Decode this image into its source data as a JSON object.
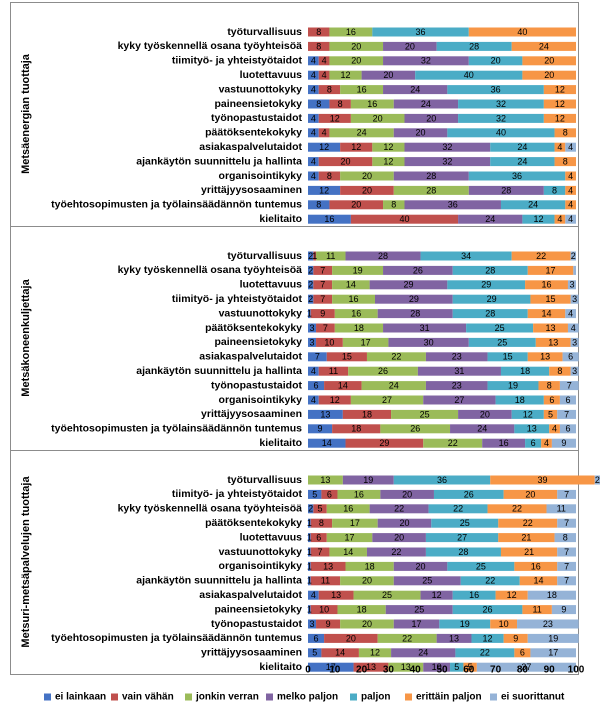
{
  "chart_data": {
    "type": "bar",
    "orientation": "horizontal",
    "stacked": true,
    "xlim": [
      0,
      100
    ],
    "xticks": [
      "0",
      "10",
      "20",
      "30",
      "40",
      "50",
      "60",
      "70",
      "80",
      "90",
      "100"
    ],
    "legend_position": "bottom",
    "series": [
      {
        "name": "ei lainkaan",
        "color": "#4472c4"
      },
      {
        "name": "vain vähän",
        "color": "#c0504d"
      },
      {
        "name": "jonkin verran",
        "color": "#9bbb59"
      },
      {
        "name": "melko paljon",
        "color": "#8064a2"
      },
      {
        "name": "paljon",
        "color": "#4bacc6"
      },
      {
        "name": "erittäin paljon",
        "color": "#f79646"
      },
      {
        "name": "ei suorittanut",
        "color": "#95b3d7"
      }
    ],
    "groups": [
      {
        "name": "Metsäenergian tuottaja",
        "rows": [
          {
            "label": "työturvallisuus",
            "values": [
              0,
              8,
              16,
              0,
              36,
              40,
              0
            ],
            "labels": [
              "",
              "8",
              "16",
              "",
              "36",
              "40",
              ""
            ]
          },
          {
            "label": "kyky työskennellä osana työyhteisöä",
            "values": [
              0,
              8,
              20,
              20,
              28,
              24,
              0
            ],
            "labels": [
              "",
              "8",
              "20",
              "20",
              "28",
              "24",
              ""
            ]
          },
          {
            "label": "tiimityö- ja yhteistyötaidot",
            "values": [
              4,
              4,
              20,
              32,
              20,
              20,
              0
            ],
            "labels": [
              "4",
              "4",
              "20",
              "32",
              "20",
              "20",
              ""
            ]
          },
          {
            "label": "luotettavuus",
            "values": [
              4,
              4,
              12,
              20,
              40,
              20,
              0
            ],
            "labels": [
              "4",
              "4",
              "12",
              "20",
              "40",
              "20",
              ""
            ]
          },
          {
            "label": "vastuunottokyky",
            "values": [
              4,
              8,
              16,
              24,
              36,
              12,
              0
            ],
            "labels": [
              "4",
              "8",
              "16",
              "24",
              "36",
              "12",
              ""
            ]
          },
          {
            "label": "paineensietokyky",
            "values": [
              8,
              8,
              16,
              24,
              32,
              12,
              0
            ],
            "labels": [
              "8",
              "8",
              "16",
              "24",
              "32",
              "12",
              ""
            ]
          },
          {
            "label": "työnopastustaidot",
            "values": [
              4,
              12,
              20,
              20,
              32,
              12,
              0
            ],
            "labels": [
              "4",
              "12",
              "20",
              "20",
              "32",
              "12",
              ""
            ]
          },
          {
            "label": "päätöksentekokyky",
            "values": [
              4,
              4,
              24,
              20,
              40,
              8,
              0
            ],
            "labels": [
              "4",
              "4",
              "24",
              "20",
              "40",
              "8",
              ""
            ]
          },
          {
            "label": "asiakaspalvelutaidot",
            "values": [
              12,
              12,
              12,
              32,
              24,
              4,
              4
            ],
            "labels": [
              "12",
              "12",
              "12",
              "32",
              "24",
              "4",
              "4"
            ]
          },
          {
            "label": "ajankäytön suunnittelu ja hallinta",
            "values": [
              4,
              20,
              12,
              32,
              24,
              8,
              0
            ],
            "labels": [
              "4",
              "20",
              "12",
              "32",
              "24",
              "8",
              ""
            ]
          },
          {
            "label": "organisointikyky",
            "values": [
              4,
              8,
              20,
              28,
              36,
              4,
              0
            ],
            "labels": [
              "4",
              "8",
              "20",
              "28",
              "36",
              "4",
              ""
            ]
          },
          {
            "label": "yrittäjyysosaaminen",
            "values": [
              12,
              20,
              28,
              28,
              8,
              4,
              0
            ],
            "labels": [
              "12",
              "20",
              "28",
              "28",
              "8",
              "4",
              ""
            ]
          },
          {
            "label": "työehtosopimusten ja työlainsäädännön tuntemus",
            "values": [
              8,
              20,
              8,
              36,
              24,
              4,
              0
            ],
            "labels": [
              "8",
              "20",
              "8",
              "36",
              "24",
              "4",
              ""
            ]
          },
          {
            "label": "kielitaito",
            "values": [
              16,
              40,
              0,
              24,
              12,
              4,
              4
            ],
            "labels": [
              "16",
              "40",
              "",
              "24",
              "12",
              "4",
              "4"
            ]
          }
        ]
      },
      {
        "name": "Metsäkoneenkuljettaja",
        "rows": [
          {
            "label": "työturvallisuus",
            "values": [
              2,
              1,
              11,
              28,
              34,
              22,
              2
            ],
            "labels": [
              "2",
              "1",
              "11",
              "28",
              "34",
              "22",
              "2"
            ]
          },
          {
            "label": "kyky työskennellä osana työyhteisöä",
            "values": [
              2,
              7,
              19,
              26,
              28,
              17,
              1
            ],
            "labels": [
              "2",
              "7",
              "19",
              "26",
              "28",
              "17",
              ""
            ]
          },
          {
            "label": "luotettavuus",
            "values": [
              2,
              7,
              14,
              29,
              29,
              16,
              3
            ],
            "labels": [
              "2",
              "7",
              "14",
              "29",
              "29",
              "16",
              "3"
            ]
          },
          {
            "label": "tiimityö- ja yhteistyötaidot",
            "values": [
              2,
              7,
              16,
              29,
              29,
              15,
              3
            ],
            "labels": [
              "2",
              "7",
              "16",
              "29",
              "29",
              "15",
              "3"
            ]
          },
          {
            "label": "vastuunottokyky",
            "values": [
              1,
              9,
              16,
              28,
              28,
              14,
              4
            ],
            "labels": [
              "1",
              "9",
              "16",
              "28",
              "28",
              "14",
              "4"
            ]
          },
          {
            "label": "päätöksentekokyky",
            "values": [
              3,
              7,
              18,
              31,
              25,
              13,
              4
            ],
            "labels": [
              "3",
              "7",
              "18",
              "31",
              "25",
              "13",
              "4"
            ]
          },
          {
            "label": "paineensietokyky",
            "values": [
              3,
              10,
              17,
              30,
              25,
              13,
              3
            ],
            "labels": [
              "3",
              "10",
              "17",
              "30",
              "25",
              "13",
              "3"
            ]
          },
          {
            "label": "asiakaspalvelutaidot",
            "values": [
              7,
              15,
              22,
              23,
              15,
              13,
              6
            ],
            "labels": [
              "7",
              "15",
              "22",
              "23",
              "15",
              "13",
              "6"
            ]
          },
          {
            "label": "ajankäytön suunnittelu ja hallinta",
            "values": [
              4,
              11,
              26,
              31,
              18,
              8,
              3
            ],
            "labels": [
              "4",
              "11",
              "26",
              "31",
              "18",
              "8",
              "3"
            ]
          },
          {
            "label": "työnopastustaidot",
            "values": [
              6,
              14,
              24,
              23,
              19,
              8,
              7
            ],
            "labels": [
              "6",
              "14",
              "24",
              "23",
              "19",
              "8",
              "7"
            ]
          },
          {
            "label": "organisointikyky",
            "values": [
              4,
              12,
              27,
              27,
              18,
              6,
              6
            ],
            "labels": [
              "4",
              "12",
              "27",
              "27",
              "18",
              "6",
              "6"
            ]
          },
          {
            "label": "yrittäjyysosaaminen",
            "values": [
              13,
              18,
              25,
              20,
              12,
              5,
              7
            ],
            "labels": [
              "13",
              "18",
              "25",
              "20",
              "12",
              "5",
              "7"
            ]
          },
          {
            "label": "työehtosopimusten ja työlainsäädännön tuntemus",
            "values": [
              9,
              18,
              26,
              24,
              13,
              4,
              6
            ],
            "labels": [
              "9",
              "18",
              "26",
              "24",
              "13",
              "4",
              "6"
            ]
          },
          {
            "label": "kielitaito",
            "values": [
              14,
              29,
              22,
              16,
              6,
              4,
              9
            ],
            "labels": [
              "14",
              "29",
              "22",
              "16",
              "6",
              "4",
              "9"
            ]
          }
        ]
      },
      {
        "name": "Metsuri-metsäpalvelujen tuottaja",
        "rows": [
          {
            "label": "työturvallisuus",
            "values": [
              0,
              0,
              13,
              19,
              36,
              39,
              2
            ],
            "labels": [
              "",
              "",
              "13",
              "19",
              "36",
              "39",
              "2"
            ]
          },
          {
            "label": "tiimityö- ja yhteistyötaidot",
            "values": [
              5,
              6,
              16,
              20,
              26,
              20,
              7
            ],
            "labels": [
              "5",
              "6",
              "16",
              "20",
              "26",
              "20",
              "7"
            ]
          },
          {
            "label": "kyky työskennellä osana työyhteisöä",
            "values": [
              2,
              5,
              16,
              22,
              22,
              22,
              11
            ],
            "labels": [
              "2",
              "5",
              "16",
              "22",
              "22",
              "22",
              "11"
            ]
          },
          {
            "label": "päätöksentekokyky",
            "values": [
              1,
              8,
              17,
              20,
              25,
              22,
              7
            ],
            "labels": [
              "1",
              "8",
              "17",
              "20",
              "25",
              "22",
              "7"
            ]
          },
          {
            "label": "luotettavuus",
            "values": [
              1,
              6,
              17,
              20,
              27,
              21,
              8
            ],
            "labels": [
              "1",
              "6",
              "17",
              "20",
              "27",
              "21",
              "8"
            ]
          },
          {
            "label": "vastuunottokyky",
            "values": [
              1,
              7,
              14,
              22,
              28,
              21,
              7
            ],
            "labels": [
              "1",
              "7",
              "14",
              "22",
              "28",
              "21",
              "7"
            ]
          },
          {
            "label": "organisointikyky",
            "values": [
              1,
              13,
              18,
              20,
              25,
              16,
              7
            ],
            "labels": [
              "1",
              "13",
              "18",
              "20",
              "25",
              "16",
              "7"
            ]
          },
          {
            "label": "ajankäytön suunnittelu ja hallinta",
            "values": [
              1,
              11,
              20,
              25,
              22,
              14,
              7
            ],
            "labels": [
              "1",
              "11",
              "20",
              "25",
              "22",
              "14",
              "7"
            ]
          },
          {
            "label": "asiakaspalvelutaidot",
            "values": [
              4,
              13,
              25,
              12,
              16,
              12,
              18
            ],
            "labels": [
              "4",
              "13",
              "25",
              "12",
              "16",
              "12",
              "18"
            ]
          },
          {
            "label": "paineensietokyky",
            "values": [
              1,
              10,
              18,
              25,
              26,
              11,
              9
            ],
            "labels": [
              "1",
              "10",
              "18",
              "25",
              "26",
              "11",
              "9"
            ]
          },
          {
            "label": "työnopastustaidot",
            "values": [
              3,
              9,
              20,
              17,
              19,
              10,
              23
            ],
            "labels": [
              "3",
              "9",
              "20",
              "17",
              "19",
              "10",
              "23"
            ]
          },
          {
            "label": "työehtosopimusten ja työlainsäädännön tuntemus",
            "values": [
              6,
              20,
              22,
              13,
              12,
              9,
              19
            ],
            "labels": [
              "6",
              "20",
              "22",
              "13",
              "12",
              "9",
              "19"
            ]
          },
          {
            "label": "yrittäjyysosaaminen",
            "values": [
              5,
              14,
              12,
              24,
              22,
              6,
              17
            ],
            "labels": [
              "5",
              "14",
              "12",
              "24",
              "22",
              "6",
              "17"
            ]
          },
          {
            "label": "kielitaito",
            "values": [
              17,
              13,
              13,
              10,
              5,
              5,
              37
            ],
            "labels": [
              "17",
              "13",
              "13",
              "10",
              "5",
              "5",
              "37"
            ]
          }
        ]
      }
    ]
  }
}
